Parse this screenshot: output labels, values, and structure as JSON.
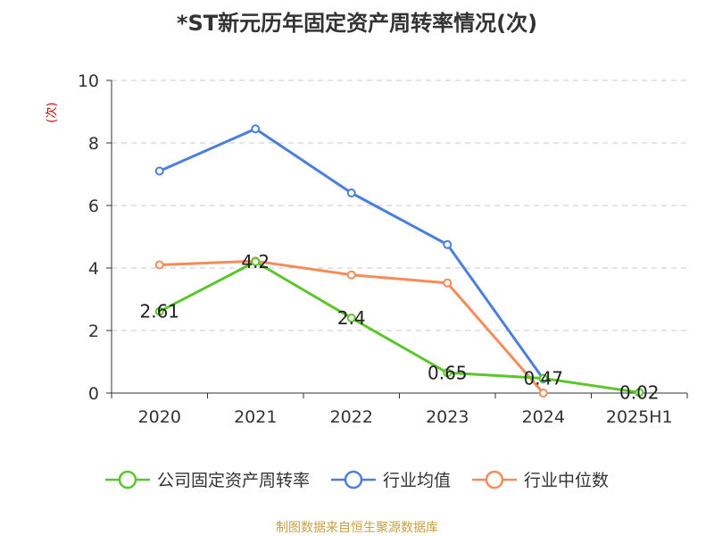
{
  "chart_data": {
    "type": "line",
    "title": "*ST新元历年固定资产周转率情况(次)",
    "ylabel": "(次)",
    "xlabel": "",
    "categories": [
      "2020",
      "2021",
      "2022",
      "2023",
      "2024",
      "2025H1"
    ],
    "ylim": [
      0,
      10
    ],
    "yticks": [
      0,
      2,
      4,
      6,
      8,
      10
    ],
    "grid": true,
    "legend_position": "bottom",
    "series": [
      {
        "name": "公司固定资产周转率",
        "color": "#5bc62b",
        "values": [
          2.61,
          4.2,
          2.4,
          0.65,
          0.47,
          0.02
        ],
        "data_labels": [
          "2.61",
          "4.2",
          "2.4",
          "0.65",
          "0.47",
          "0.02"
        ]
      },
      {
        "name": "行业均值",
        "color": "#4a7fdc",
        "values": [
          7.1,
          8.45,
          6.4,
          4.75,
          0.45,
          null
        ]
      },
      {
        "name": "行业中位数",
        "color": "#f58b58",
        "values": [
          4.1,
          4.22,
          3.78,
          3.52,
          0.0,
          null
        ]
      }
    ]
  },
  "source": "制图数据来自恒生聚源数据库"
}
